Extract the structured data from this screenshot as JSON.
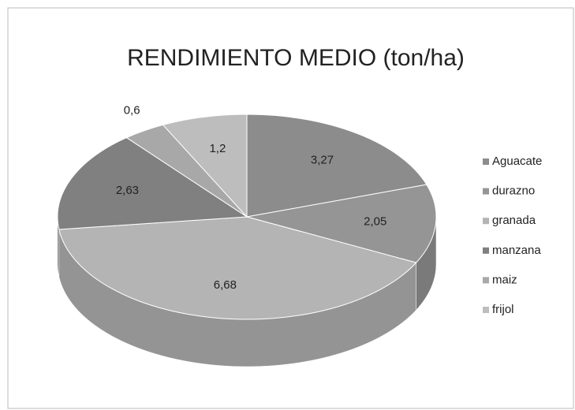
{
  "chart_data": {
    "type": "pie3d",
    "title": "RENDIMIENTO MEDIO (ton/ha)",
    "categories": [
      "Aguacate",
      "durazno",
      "granada",
      "manzana",
      "maiz",
      "frijol"
    ],
    "values": [
      3.27,
      2.05,
      6.68,
      2.63,
      0.6,
      1.2
    ],
    "value_labels": [
      "3,27",
      "2,05",
      "6,68",
      "2,63",
      "0,6",
      "1,2"
    ],
    "colors": [
      "#8c8c8c",
      "#959595",
      "#b4b4b4",
      "#808080",
      "#a8a8a8",
      "#bdbdbd"
    ],
    "legend": "right"
  }
}
